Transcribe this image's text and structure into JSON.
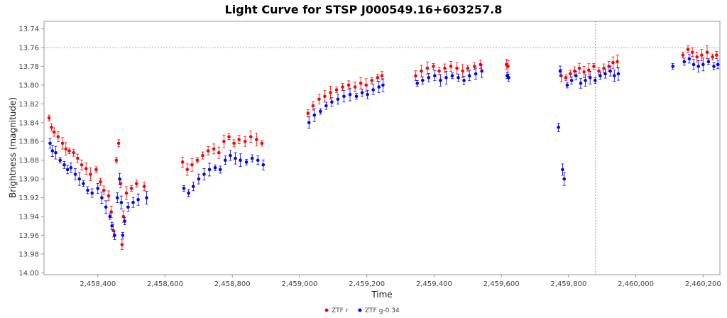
{
  "chart_data": {
    "type": "scatter",
    "title": "Light Curve for STSP J000549.16+603257.8",
    "xlabel": "Time",
    "ylabel": "Brightness (magnitude)",
    "xlim": [
      2458240,
      2460250
    ],
    "ylim": [
      14.002,
      13.732
    ],
    "y_inverted": true,
    "x_ticks": [
      2458400,
      2458600,
      2458800,
      2459000,
      2459200,
      2459400,
      2459600,
      2459800,
      2460000,
      2460200
    ],
    "x_tick_labels": [
      "2,458,400",
      "2,458,600",
      "2,458,800",
      "2,459,000",
      "2,459,200",
      "2,459,400",
      "2,459,600",
      "2,459,800",
      "2,460,000",
      "2,460,200"
    ],
    "y_ticks": [
      13.74,
      13.76,
      13.78,
      13.8,
      13.82,
      13.84,
      13.86,
      13.88,
      13.9,
      13.92,
      13.94,
      13.96,
      13.98,
      14.0
    ],
    "y_tick_labels": [
      "13.74",
      "13.76",
      "13.78",
      "13.80",
      "13.82",
      "13.84",
      "13.86",
      "13.88",
      "13.90",
      "13.92",
      "13.94",
      "13.96",
      "13.98",
      "14.00"
    ],
    "grid": false,
    "reference_lines": {
      "horizontal_y": 13.76,
      "vertical_x": 2459880,
      "color": "#8080ff"
    },
    "legend_position": "bottom-center",
    "series": [
      {
        "name": "ZTF r",
        "color": "#ff0000",
        "x": [
          2458255,
          2458262,
          2458270,
          2458282,
          2458295,
          2458305,
          2458315,
          2458328,
          2458340,
          2458352,
          2458365,
          2458378,
          2458395,
          2458408,
          2458418,
          2458432,
          2458440,
          2458446,
          2458455,
          2458462,
          2458468,
          2458472,
          2458476,
          2458485,
          2458500,
          2458515,
          2458538,
          2458652,
          2458666,
          2458680,
          2458696,
          2458712,
          2458728,
          2458745,
          2458760,
          2458775,
          2458790,
          2458805,
          2458820,
          2458838,
          2458855,
          2458872,
          2458888,
          2459025,
          2459040,
          2459058,
          2459075,
          2459092,
          2459110,
          2459128,
          2459146,
          2459165,
          2459182,
          2459198,
          2459215,
          2459232,
          2459245,
          2459345,
          2459362,
          2459380,
          2459398,
          2459415,
          2459432,
          2459450,
          2459468,
          2459485,
          2459500,
          2459520,
          2459538,
          2459615,
          2459620,
          2459778,
          2459792,
          2459805,
          2459818,
          2459832,
          2459846,
          2459860,
          2459875,
          2459890,
          2459905,
          2459920,
          2459932,
          2459945,
          2460140,
          2460155,
          2460168,
          2460182,
          2460196,
          2460212,
          2460228,
          2460240
        ],
        "y": [
          13.835,
          13.845,
          13.85,
          13.855,
          13.862,
          13.868,
          13.87,
          13.872,
          13.878,
          13.885,
          13.889,
          13.895,
          13.89,
          13.903,
          13.912,
          13.918,
          13.935,
          13.955,
          13.88,
          13.862,
          13.905,
          13.97,
          13.94,
          13.915,
          13.91,
          13.905,
          13.908,
          13.882,
          13.89,
          13.885,
          13.88,
          13.875,
          13.87,
          13.868,
          13.872,
          13.86,
          13.855,
          13.862,
          13.858,
          13.86,
          13.855,
          13.858,
          13.862,
          13.83,
          13.822,
          13.815,
          13.812,
          13.808,
          13.805,
          13.802,
          13.8,
          13.802,
          13.798,
          13.8,
          13.795,
          13.792,
          13.79,
          13.79,
          13.785,
          13.782,
          13.78,
          13.785,
          13.782,
          13.78,
          13.782,
          13.785,
          13.782,
          13.78,
          13.778,
          13.778,
          13.78,
          13.79,
          13.792,
          13.788,
          13.785,
          13.782,
          13.786,
          13.784,
          13.78,
          13.785,
          13.782,
          13.78,
          13.776,
          13.775,
          13.768,
          13.762,
          13.765,
          13.77,
          13.768,
          13.765,
          13.77,
          13.768
        ]
      },
      {
        "name": "ZTF g-0.34",
        "color": "#0000ff",
        "x": [
          2458258,
          2458265,
          2458275,
          2458288,
          2458300,
          2458310,
          2458320,
          2458333,
          2458345,
          2458357,
          2458370,
          2458383,
          2458400,
          2458412,
          2458424,
          2458436,
          2458442,
          2458450,
          2458458,
          2458465,
          2458470,
          2458474,
          2458480,
          2458490,
          2458505,
          2458520,
          2458545,
          2458656,
          2458670,
          2458684,
          2458700,
          2458716,
          2458732,
          2458749,
          2458764,
          2458779,
          2458794,
          2458809,
          2458824,
          2458842,
          2458859,
          2458876,
          2458892,
          2459028,
          2459044,
          2459062,
          2459079,
          2459096,
          2459114,
          2459132,
          2459150,
          2459169,
          2459186,
          2459202,
          2459219,
          2459236,
          2459248,
          2459350,
          2459366,
          2459384,
          2459402,
          2459419,
          2459436,
          2459454,
          2459472,
          2459489,
          2459505,
          2459524,
          2459542,
          2459617,
          2459622,
          2459770,
          2459775,
          2459782,
          2459787,
          2459796,
          2459809,
          2459822,
          2459836,
          2459850,
          2459864,
          2459879,
          2459894,
          2459909,
          2459924,
          2459936,
          2459948,
          2460110,
          2460144,
          2460159,
          2460172,
          2460186,
          2460200,
          2460216,
          2460232,
          2460244
        ],
        "y": [
          13.862,
          13.87,
          13.872,
          13.88,
          13.885,
          13.89,
          13.888,
          13.895,
          13.9,
          13.905,
          13.912,
          13.915,
          13.91,
          13.92,
          13.93,
          13.94,
          13.95,
          13.96,
          13.92,
          13.9,
          13.925,
          13.96,
          13.945,
          13.93,
          13.925,
          13.922,
          13.92,
          13.91,
          13.915,
          13.908,
          13.9,
          13.895,
          13.89,
          13.888,
          13.89,
          13.88,
          13.875,
          13.878,
          13.88,
          13.882,
          13.878,
          13.88,
          13.885,
          13.84,
          13.832,
          13.828,
          13.822,
          13.818,
          13.815,
          13.812,
          13.81,
          13.812,
          13.808,
          13.81,
          13.805,
          13.802,
          13.8,
          13.798,
          13.795,
          13.792,
          13.79,
          13.795,
          13.792,
          13.79,
          13.792,
          13.795,
          13.79,
          13.788,
          13.785,
          13.79,
          13.792,
          13.845,
          13.785,
          13.89,
          13.9,
          13.8,
          13.795,
          13.79,
          13.798,
          13.795,
          13.792,
          13.795,
          13.79,
          13.788,
          13.785,
          13.79,
          13.788,
          13.78,
          13.775,
          13.772,
          13.778,
          13.78,
          13.778,
          13.775,
          13.78,
          13.778
        ]
      }
    ]
  }
}
